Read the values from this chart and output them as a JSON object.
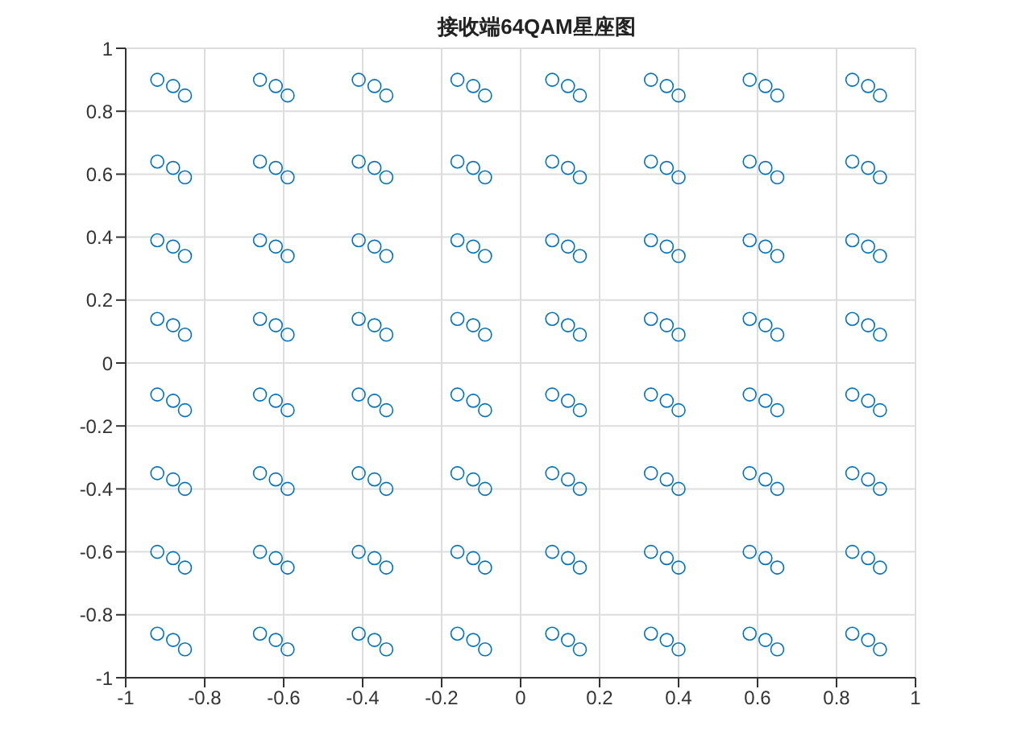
{
  "chart_data": {
    "type": "scatter",
    "title": "接收端64QAM星座图",
    "xlim": [
      -1,
      1
    ],
    "ylim": [
      -1,
      1
    ],
    "xticks": [
      -1,
      -0.8,
      -0.6,
      -0.4,
      -0.2,
      0,
      0.2,
      0.4,
      0.6,
      0.8,
      1
    ],
    "yticks": [
      -1,
      -0.8,
      -0.6,
      -0.4,
      -0.2,
      0,
      0.2,
      0.4,
      0.6,
      0.8,
      1
    ],
    "grid": true,
    "marker": "circle",
    "legend": false,
    "series": [
      {
        "color": "#0072bd",
        "x": [
          -0.92,
          -0.88,
          -0.85,
          -0.66,
          -0.62,
          -0.59,
          -0.41,
          -0.37,
          -0.34,
          -0.16,
          -0.12,
          -0.09,
          0.08,
          0.12,
          0.15,
          0.33,
          0.37,
          0.4,
          0.58,
          0.62,
          0.65,
          0.84,
          0.88,
          0.91,
          -0.92,
          -0.88,
          -0.85,
          -0.66,
          -0.62,
          -0.59,
          -0.41,
          -0.37,
          -0.34,
          -0.16,
          -0.12,
          -0.09,
          0.08,
          0.12,
          0.15,
          0.33,
          0.37,
          0.4,
          0.58,
          0.62,
          0.65,
          0.84,
          0.88,
          0.91,
          -0.92,
          -0.88,
          -0.85,
          -0.66,
          -0.62,
          -0.59,
          -0.41,
          -0.37,
          -0.34,
          -0.16,
          -0.12,
          -0.09,
          0.08,
          0.12,
          0.15,
          0.33,
          0.37,
          0.4,
          0.58,
          0.62,
          0.65,
          0.84,
          0.88,
          0.91,
          -0.92,
          -0.88,
          -0.85,
          -0.66,
          -0.62,
          -0.59,
          -0.41,
          -0.37,
          -0.34,
          -0.16,
          -0.12,
          -0.09,
          0.08,
          0.12,
          0.15,
          0.33,
          0.37,
          0.4,
          0.58,
          0.62,
          0.65,
          0.84,
          0.88,
          0.91,
          -0.92,
          -0.88,
          -0.85,
          -0.66,
          -0.62,
          -0.59,
          -0.41,
          -0.37,
          -0.34,
          -0.16,
          -0.12,
          -0.09,
          0.08,
          0.12,
          0.15,
          0.33,
          0.37,
          0.4,
          0.58,
          0.62,
          0.65,
          0.84,
          0.88,
          0.91,
          -0.92,
          -0.88,
          -0.85,
          -0.66,
          -0.62,
          -0.59,
          -0.41,
          -0.37,
          -0.34,
          -0.16,
          -0.12,
          -0.09,
          0.08,
          0.12,
          0.15,
          0.33,
          0.37,
          0.4,
          0.58,
          0.62,
          0.65,
          0.84,
          0.88,
          0.91,
          -0.92,
          -0.88,
          -0.85,
          -0.66,
          -0.62,
          -0.59,
          -0.41,
          -0.37,
          -0.34,
          -0.16,
          -0.12,
          -0.09,
          0.08,
          0.12,
          0.15,
          0.33,
          0.37,
          0.4,
          0.58,
          0.62,
          0.65,
          0.84,
          0.88,
          0.91,
          -0.92,
          -0.88,
          -0.85,
          -0.66,
          -0.62,
          -0.59,
          -0.41,
          -0.37,
          -0.34,
          -0.16,
          -0.12,
          -0.09,
          0.08,
          0.12,
          0.15,
          0.33,
          0.37,
          0.4,
          0.58,
          0.62,
          0.65,
          0.84,
          0.88,
          0.91
        ],
        "values": [
          0.9,
          0.88,
          0.85,
          0.9,
          0.88,
          0.85,
          0.9,
          0.88,
          0.85,
          0.9,
          0.88,
          0.85,
          0.9,
          0.88,
          0.85,
          0.9,
          0.88,
          0.85,
          0.9,
          0.88,
          0.85,
          0.9,
          0.88,
          0.85,
          0.64,
          0.62,
          0.59,
          0.64,
          0.62,
          0.59,
          0.64,
          0.62,
          0.59,
          0.64,
          0.62,
          0.59,
          0.64,
          0.62,
          0.59,
          0.64,
          0.62,
          0.59,
          0.64,
          0.62,
          0.59,
          0.64,
          0.62,
          0.59,
          0.39,
          0.37,
          0.34,
          0.39,
          0.37,
          0.34,
          0.39,
          0.37,
          0.34,
          0.39,
          0.37,
          0.34,
          0.39,
          0.37,
          0.34,
          0.39,
          0.37,
          0.34,
          0.39,
          0.37,
          0.34,
          0.39,
          0.37,
          0.34,
          0.14,
          0.12,
          0.09,
          0.14,
          0.12,
          0.09,
          0.14,
          0.12,
          0.09,
          0.14,
          0.12,
          0.09,
          0.14,
          0.12,
          0.09,
          0.14,
          0.12,
          0.09,
          0.14,
          0.12,
          0.09,
          0.14,
          0.12,
          0.09,
          -0.1,
          -0.12,
          -0.15,
          -0.1,
          -0.12,
          -0.15,
          -0.1,
          -0.12,
          -0.15,
          -0.1,
          -0.12,
          -0.15,
          -0.1,
          -0.12,
          -0.15,
          -0.1,
          -0.12,
          -0.15,
          -0.1,
          -0.12,
          -0.15,
          -0.1,
          -0.12,
          -0.15,
          -0.35,
          -0.37,
          -0.4,
          -0.35,
          -0.37,
          -0.4,
          -0.35,
          -0.37,
          -0.4,
          -0.35,
          -0.37,
          -0.4,
          -0.35,
          -0.37,
          -0.4,
          -0.35,
          -0.37,
          -0.4,
          -0.35,
          -0.37,
          -0.4,
          -0.35,
          -0.37,
          -0.4,
          -0.6,
          -0.62,
          -0.65,
          -0.6,
          -0.62,
          -0.65,
          -0.6,
          -0.62,
          -0.65,
          -0.6,
          -0.62,
          -0.65,
          -0.6,
          -0.62,
          -0.65,
          -0.6,
          -0.62,
          -0.65,
          -0.6,
          -0.62,
          -0.65,
          -0.6,
          -0.62,
          -0.65,
          -0.86,
          -0.88,
          -0.91,
          -0.86,
          -0.88,
          -0.91,
          -0.86,
          -0.88,
          -0.91,
          -0.86,
          -0.88,
          -0.91,
          -0.86,
          -0.88,
          -0.91,
          -0.86,
          -0.88,
          -0.91,
          -0.86,
          -0.88,
          -0.91,
          -0.86,
          -0.88,
          -0.91
        ]
      }
    ]
  }
}
